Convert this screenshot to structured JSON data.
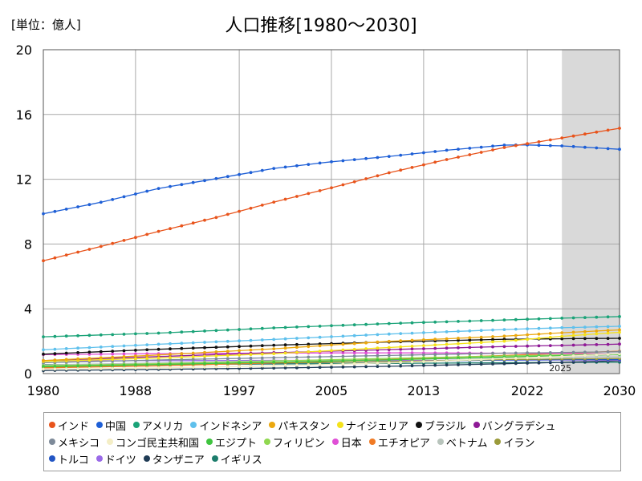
{
  "unit_label": "[単位：億人]",
  "chart_data": {
    "type": "line",
    "title": "人口推移[1980～2030]",
    "xlim": [
      1980,
      2030
    ],
    "ylim": [
      0,
      20
    ],
    "x_ticks": [
      1980,
      1988,
      1997,
      2005,
      2013,
      2022,
      2030
    ],
    "y_ticks": [
      0,
      4,
      8,
      12,
      16,
      20
    ],
    "grid": true,
    "shaded_region": {
      "from": 2025,
      "to": 2030,
      "label": "2025",
      "color": "#d9d9d9"
    },
    "legend_position": "bottom",
    "series": [
      {
        "name": "インド",
        "color": "#e8541c",
        "points": [
          [
            1980,
            6.97
          ],
          [
            1985,
            7.85
          ],
          [
            1990,
            8.78
          ],
          [
            1995,
            9.64
          ],
          [
            2000,
            10.59
          ],
          [
            2005,
            11.47
          ],
          [
            2010,
            12.4
          ],
          [
            2015,
            13.22
          ],
          [
            2020,
            13.96
          ],
          [
            2025,
            14.55
          ],
          [
            2030,
            15.15
          ]
        ]
      },
      {
        "name": "中国",
        "color": "#1e5fd6",
        "points": [
          [
            1980,
            9.87
          ],
          [
            1985,
            10.58
          ],
          [
            1990,
            11.43
          ],
          [
            1995,
            12.04
          ],
          [
            2000,
            12.67
          ],
          [
            2005,
            13.08
          ],
          [
            2010,
            13.41
          ],
          [
            2015,
            13.79
          ],
          [
            2020,
            14.11
          ],
          [
            2022,
            14.12
          ],
          [
            2025,
            14.06
          ],
          [
            2030,
            13.85
          ]
        ]
      },
      {
        "name": "アメリカ",
        "color": "#1aa378",
        "points": [
          [
            1980,
            2.27
          ],
          [
            1990,
            2.5
          ],
          [
            2000,
            2.82
          ],
          [
            2010,
            3.09
          ],
          [
            2020,
            3.31
          ],
          [
            2025,
            3.42
          ],
          [
            2030,
            3.52
          ]
        ]
      },
      {
        "name": "インドネシア",
        "color": "#5fc0ec",
        "points": [
          [
            1980,
            1.47
          ],
          [
            1990,
            1.81
          ],
          [
            2000,
            2.11
          ],
          [
            2010,
            2.44
          ],
          [
            2020,
            2.72
          ],
          [
            2025,
            2.83
          ],
          [
            2030,
            2.92
          ]
        ]
      },
      {
        "name": "パキスタン",
        "color": "#eba80f",
        "points": [
          [
            1980,
            0.8
          ],
          [
            1990,
            1.15
          ],
          [
            2000,
            1.53
          ],
          [
            2010,
            1.99
          ],
          [
            2020,
            2.31
          ],
          [
            2025,
            2.52
          ],
          [
            2030,
            2.7
          ]
        ]
      },
      {
        "name": "ナイジェリア",
        "color": "#f4e21a",
        "points": [
          [
            1980,
            0.75
          ],
          [
            1990,
            0.96
          ],
          [
            2000,
            1.23
          ],
          [
            2010,
            1.61
          ],
          [
            2020,
            2.0
          ],
          [
            2025,
            2.3
          ],
          [
            2030,
            2.55
          ]
        ]
      },
      {
        "name": "ブラジル",
        "color": "#111111",
        "points": [
          [
            1980,
            1.2
          ],
          [
            1990,
            1.5
          ],
          [
            2000,
            1.75
          ],
          [
            2010,
            1.95
          ],
          [
            2020,
            2.12
          ],
          [
            2025,
            2.15
          ],
          [
            2030,
            2.18
          ]
        ]
      },
      {
        "name": "バングラデシュ",
        "color": "#8e1a96",
        "points": [
          [
            1980,
            0.8
          ],
          [
            1990,
            1.05
          ],
          [
            2000,
            1.29
          ],
          [
            2010,
            1.48
          ],
          [
            2020,
            1.67
          ],
          [
            2025,
            1.74
          ],
          [
            2030,
            1.82
          ]
        ]
      },
      {
        "name": "メキシコ",
        "color": "#7d8a99",
        "points": [
          [
            1980,
            0.67
          ],
          [
            1990,
            0.84
          ],
          [
            2000,
            0.98
          ],
          [
            2010,
            1.12
          ],
          [
            2020,
            1.26
          ],
          [
            2025,
            1.3
          ],
          [
            2030,
            1.35
          ]
        ]
      },
      {
        "name": "コンゴ民主共和国",
        "color": "#f4eec6",
        "points": [
          [
            1980,
            0.27
          ],
          [
            1990,
            0.35
          ],
          [
            2000,
            0.48
          ],
          [
            2010,
            0.66
          ],
          [
            2020,
            0.92
          ],
          [
            2025,
            1.06
          ],
          [
            2030,
            1.22
          ]
        ]
      },
      {
        "name": "エジプト",
        "color": "#3fc43f",
        "points": [
          [
            1980,
            0.43
          ],
          [
            1990,
            0.56
          ],
          [
            2000,
            0.7
          ],
          [
            2010,
            0.85
          ],
          [
            2020,
            1.02
          ],
          [
            2025,
            1.1
          ],
          [
            2030,
            1.18
          ]
        ]
      },
      {
        "name": "フィリピン",
        "color": "#90d850",
        "points": [
          [
            1980,
            0.48
          ],
          [
            1990,
            0.61
          ],
          [
            2000,
            0.78
          ],
          [
            2010,
            0.94
          ],
          [
            2020,
            1.09
          ],
          [
            2025,
            1.15
          ],
          [
            2030,
            1.2
          ]
        ]
      },
      {
        "name": "日本",
        "color": "#e04fd6",
        "points": [
          [
            1980,
            1.17
          ],
          [
            1990,
            1.23
          ],
          [
            2000,
            1.27
          ],
          [
            2010,
            1.28
          ],
          [
            2020,
            1.26
          ],
          [
            2025,
            1.24
          ],
          [
            2030,
            1.2
          ]
        ]
      },
      {
        "name": "エチオピア",
        "color": "#f07a24",
        "points": [
          [
            1980,
            0.35
          ],
          [
            1990,
            0.48
          ],
          [
            2000,
            0.66
          ],
          [
            2010,
            0.87
          ],
          [
            2020,
            1.12
          ],
          [
            2025,
            1.25
          ],
          [
            2030,
            1.38
          ]
        ]
      },
      {
        "name": "ベトナム",
        "color": "#b8c4bc",
        "points": [
          [
            1980,
            0.54
          ],
          [
            1990,
            0.66
          ],
          [
            2000,
            0.79
          ],
          [
            2010,
            0.88
          ],
          [
            2020,
            0.97
          ],
          [
            2025,
            1.0
          ],
          [
            2030,
            1.03
          ]
        ]
      },
      {
        "name": "イラン",
        "color": "#9a9a3a",
        "points": [
          [
            1980,
            0.39
          ],
          [
            1990,
            0.56
          ],
          [
            2000,
            0.65
          ],
          [
            2010,
            0.74
          ],
          [
            2020,
            0.87
          ],
          [
            2025,
            0.9
          ],
          [
            2030,
            0.93
          ]
        ]
      },
      {
        "name": "トルコ",
        "color": "#2255c4",
        "points": [
          [
            1980,
            0.44
          ],
          [
            1990,
            0.55
          ],
          [
            2000,
            0.64
          ],
          [
            2010,
            0.73
          ],
          [
            2020,
            0.84
          ],
          [
            2025,
            0.86
          ],
          [
            2030,
            0.87
          ]
        ]
      },
      {
        "name": "ドイツ",
        "color": "#9a6ae8",
        "points": [
          [
            1980,
            0.78
          ],
          [
            1990,
            0.8
          ],
          [
            2000,
            0.82
          ],
          [
            2010,
            0.81
          ],
          [
            2020,
            0.83
          ],
          [
            2025,
            0.84
          ],
          [
            2030,
            0.83
          ]
        ]
      },
      {
        "name": "タンザニア",
        "color": "#1f3b55",
        "points": [
          [
            1980,
            0.19
          ],
          [
            1990,
            0.26
          ],
          [
            2000,
            0.34
          ],
          [
            2010,
            0.45
          ],
          [
            2020,
            0.61
          ],
          [
            2025,
            0.69
          ],
          [
            2030,
            0.79
          ]
        ]
      },
      {
        "name": "イギリス",
        "color": "#1c7d6c",
        "points": [
          [
            1980,
            0.56
          ],
          [
            1990,
            0.57
          ],
          [
            2000,
            0.59
          ],
          [
            2010,
            0.63
          ],
          [
            2020,
            0.67
          ],
          [
            2025,
            0.69
          ],
          [
            2030,
            0.7
          ]
        ]
      }
    ]
  }
}
